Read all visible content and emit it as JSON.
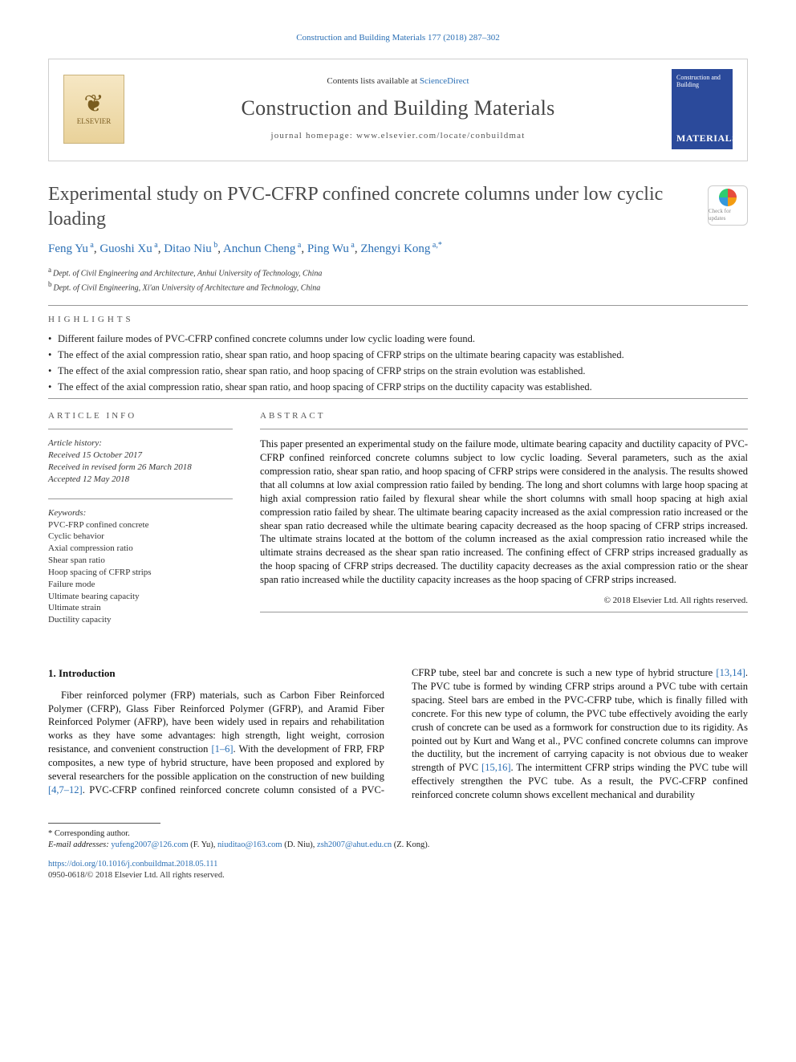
{
  "journal_ref": "Construction and Building Materials 177 (2018) 287–302",
  "header": {
    "contents_prefix": "Contents lists available at ",
    "contents_link": "ScienceDirect",
    "journal_title": "Construction and Building Materials",
    "homepage_prefix": "journal homepage: ",
    "homepage_url": "www.elsevier.com/locate/conbuildmat",
    "publisher_name": "ELSEVIER",
    "cover_line1": "Construction and Building",
    "cover_line2": "MATERIALS"
  },
  "article": {
    "title": "Experimental study on PVC-CFRP confined concrete columns under low cyclic loading",
    "crossmark_label": "Check for updates"
  },
  "authors": [
    {
      "name": "Feng Yu",
      "aff": "a"
    },
    {
      "name": "Guoshi Xu",
      "aff": "a"
    },
    {
      "name": "Ditao Niu",
      "aff": "b"
    },
    {
      "name": "Anchun Cheng",
      "aff": "a"
    },
    {
      "name": "Ping Wu",
      "aff": "a"
    },
    {
      "name": "Zhengyi Kong",
      "aff": "a,*"
    }
  ],
  "affiliations": [
    {
      "key": "a",
      "text": "Dept. of Civil Engineering and Architecture, Anhui University of Technology, China"
    },
    {
      "key": "b",
      "text": "Dept. of Civil Engineering, Xi'an University of Architecture and Technology, China"
    }
  ],
  "highlights_label": "highlights",
  "highlights": [
    "Different failure modes of PVC-CFRP confined concrete columns under low cyclic loading were found.",
    "The effect of the axial compression ratio, shear span ratio, and hoop spacing of CFRP strips on the ultimate bearing capacity was established.",
    "The effect of the axial compression ratio, shear span ratio, and hoop spacing of CFRP strips on the strain evolution was established.",
    "The effect of the axial compression ratio, shear span ratio, and hoop spacing of CFRP strips on the ductility capacity was established."
  ],
  "article_info_label": "article info",
  "history": {
    "label": "Article history:",
    "received": "Received 15 October 2017",
    "revised": "Received in revised form 26 March 2018",
    "accepted": "Accepted 12 May 2018"
  },
  "keywords_label": "Keywords:",
  "keywords": [
    "PVC-FRP confined concrete",
    "Cyclic behavior",
    "Axial compression ratio",
    "Shear span ratio",
    "Hoop spacing of CFRP strips",
    "Failure mode",
    "Ultimate bearing capacity",
    "Ultimate strain",
    "Ductility capacity"
  ],
  "abstract_label": "abstract",
  "abstract_text": "This paper presented an experimental study on the failure mode, ultimate bearing capacity and ductility capacity of PVC-CFRP confined reinforced concrete columns subject to low cyclic loading. Several parameters, such as the axial compression ratio, shear span ratio, and hoop spacing of CFRP strips were considered in the analysis. The results showed that all columns at low axial compression ratio failed by bending. The long and short columns with large hoop spacing at high axial compression ratio failed by flexural shear while the short columns with small hoop spacing at high axial compression ratio failed by shear. The ultimate bearing capacity increased as the axial compression ratio increased or the shear span ratio decreased while the ultimate bearing capacity decreased as the hoop spacing of CFRP strips increased. The ultimate strains located at the bottom of the column increased as the axial compression ratio increased while the ultimate strains decreased as the shear span ratio increased. The confining effect of CFRP strips increased gradually as the hoop spacing of CFRP strips decreased. The ductility capacity decreases as the axial compression ratio or the shear span ratio increased while the ductility capacity increases as the hoop spacing of CFRP strips increased.",
  "copyright": "© 2018 Elsevier Ltd. All rights reserved.",
  "intro_heading": "1. Introduction",
  "intro_col1": "Fiber reinforced polymer (FRP) materials, such as Carbon Fiber Reinforced Polymer (CFRP), Glass Fiber Reinforced Polymer (GFRP), and Aramid Fiber Reinforced Polymer (AFRP), have been widely used in repairs and rehabilitation works as they have some advantages: high strength, light weight, corrosion resistance, and convenient construction ",
  "intro_link1": "[1–6]",
  "intro_col1b": ". With the development of FRP, FRP composites, a new type of hybrid structure, have been proposed and explored by several researchers for the possible application",
  "intro_col2a": "on the construction of new building ",
  "intro_link2": "[4,7–12]",
  "intro_col2b": ". PVC-CFRP confined reinforced concrete column consisted of a PVC-CFRP tube, steel bar and concrete is such a new type of hybrid structure ",
  "intro_link3": "[13,14]",
  "intro_col2c": ". The PVC tube is formed by winding CFRP strips around a PVC tube with certain spacing. Steel bars are embed in the PVC-CFRP tube, which is finally filled with concrete. For this new type of column, the PVC tube effectively avoiding the early crush of concrete can be used as a formwork for construction due to its rigidity. As pointed out by Kurt and Wang et al., PVC confined concrete columns can improve the ductility, but the increment of carrying capacity is not obvious due to weaker strength of PVC ",
  "intro_link4": "[15,16]",
  "intro_col2d": ". The intermittent CFRP strips winding the PVC tube will effectively strengthen the PVC tube. As a result, the PVC-CFRP confined reinforced concrete column shows excellent mechanical and durability",
  "footnotes": {
    "corr_symbol": "*",
    "corr_label": "Corresponding author.",
    "email_label": "E-mail addresses:",
    "emails": [
      {
        "addr": "yufeng2007@126.com",
        "who": "(F. Yu)"
      },
      {
        "addr": "niuditao@163.com",
        "who": "(D. Niu)"
      },
      {
        "addr": "zsh2007@ahut.edu.cn",
        "who": "(Z. Kong)"
      }
    ]
  },
  "doi": "https://doi.org/10.1016/j.conbuildmat.2018.05.111",
  "issn_line": "0950-0618/© 2018 Elsevier Ltd. All rights reserved.",
  "colors": {
    "link": "#2a6fb5",
    "text": "#1a1a1a",
    "muted": "#555555",
    "rule": "#999999",
    "cover_bg": "#2b4a9b"
  }
}
